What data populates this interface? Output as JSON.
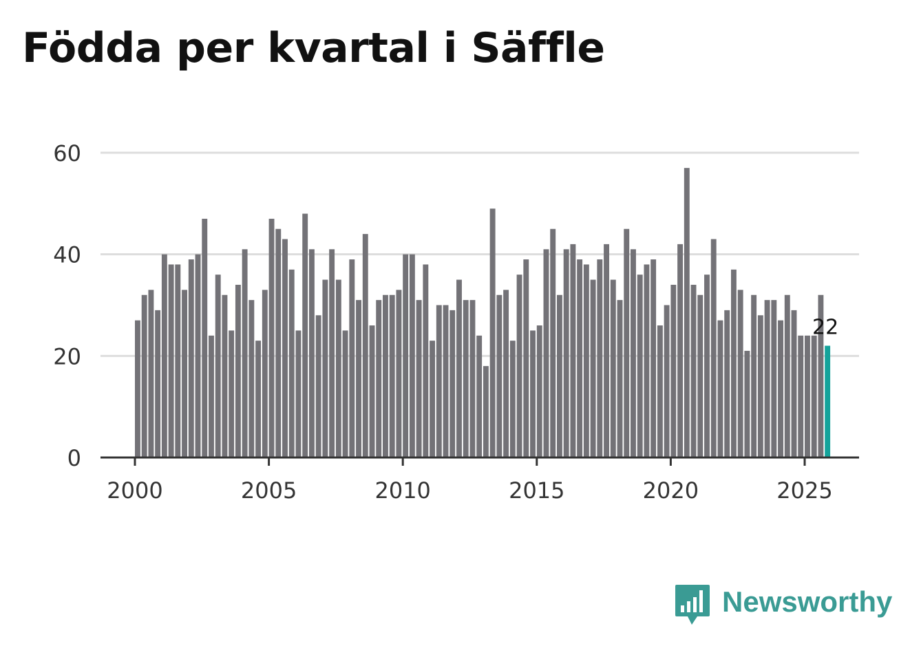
{
  "title": "Födda per kvartal i Säffle",
  "brand": {
    "name": "Newsworthy",
    "color": "#3a9b94",
    "icon": "newsworthy-logo-icon"
  },
  "colors": {
    "bar": "#737277",
    "highlight": "#14a39b",
    "grid": "#dddddd",
    "axis": "#333333"
  },
  "chart_data": {
    "type": "bar",
    "title": "Födda per kvartal i Säffle",
    "xlabel": "",
    "ylabel": "",
    "ylim": [
      0,
      60
    ],
    "yticks": [
      0,
      20,
      40,
      60
    ],
    "xticks": [
      2000,
      2005,
      2010,
      2015,
      2020,
      2025
    ],
    "start_year": 2000,
    "start_quarter": 1,
    "values": [
      27,
      32,
      33,
      29,
      40,
      38,
      38,
      33,
      39,
      40,
      47,
      24,
      36,
      32,
      25,
      34,
      41,
      31,
      23,
      33,
      47,
      45,
      43,
      37,
      25,
      48,
      41,
      28,
      35,
      41,
      35,
      25,
      39,
      31,
      44,
      26,
      31,
      32,
      32,
      33,
      40,
      40,
      31,
      38,
      23,
      30,
      30,
      29,
      35,
      31,
      31,
      24,
      18,
      49,
      32,
      33,
      23,
      36,
      39,
      25,
      26,
      41,
      45,
      32,
      41,
      42,
      39,
      38,
      35,
      39,
      42,
      35,
      31,
      45,
      41,
      36,
      38,
      39,
      26,
      30,
      34,
      42,
      57,
      34,
      32,
      36,
      43,
      27,
      29,
      37,
      33,
      21,
      32,
      28,
      31,
      31,
      27,
      32,
      29,
      24,
      24,
      24,
      32,
      22
    ],
    "highlight_index": 103,
    "highlight_label": "22"
  }
}
